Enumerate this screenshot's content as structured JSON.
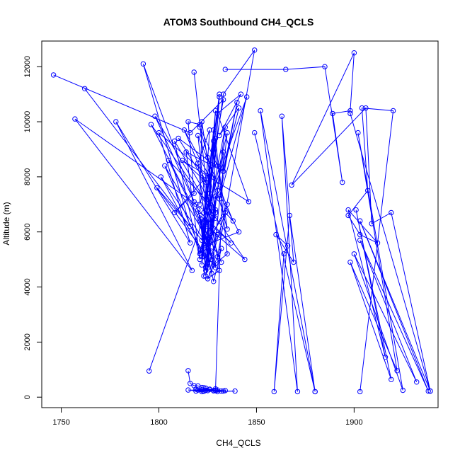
{
  "chart_data": {
    "type": "line",
    "title": "ATOM3 Southbound CH4_QCLS",
    "xlabel": "CH4_QCLS",
    "ylabel": "Altitude (m)",
    "xlim": [
      1740,
      1943
    ],
    "ylim": [
      -380,
      12930
    ],
    "x_ticks": [
      1750,
      1800,
      1850,
      1900
    ],
    "y_ticks": [
      0,
      2000,
      4000,
      6000,
      8000,
      10000,
      12000
    ],
    "grid": false,
    "legend": "none",
    "color": "#0000ff",
    "series": [
      {
        "marker": "open-circle",
        "x": [
          1746,
          1816,
          1833,
          1823,
          1831,
          1823,
          1828,
          1835,
          1821,
          1830,
          1828,
          1829,
          1826,
          1833,
          1849,
          1830,
          1827,
          1826,
          1825,
          1829,
          1822,
          1821,
          1828,
          1823,
          1841,
          1830,
          1822,
          1826,
          1820,
          1824,
          1831,
          1826,
          1825,
          1834,
          1826,
          1821,
          1834,
          1838,
          1820,
          1827,
          1835,
          1822,
          1829,
          1824,
          1821,
          1837,
          1820,
          1827,
          1835,
          1822,
          1824,
          1832,
          1796,
          1844,
          1823,
          1825,
          1822,
          1829,
          1835,
          1828,
          1821,
          1830,
          1824,
          1829,
          1823,
          1826,
          1831,
          1825,
          1832,
          1828,
          1822,
          1824,
          1833,
          1829,
          1820,
          1826,
          1833,
          1829,
          1830,
          1839,
          1823,
          1828,
          1832,
          1822,
          1819,
          1825,
          1828,
          1830,
          1822,
          1815,
          1834,
          1819,
          1826,
          1829,
          1824,
          1824,
          1823,
          1822,
          1820,
          1818,
          1816,
          1815
        ],
        "y": [
          11700,
          9600,
          10800,
          6700,
          11000,
          6400,
          9700,
          6100,
          9800,
          8400,
          9300,
          6700,
          7400,
          11000,
          12600,
          5100,
          6200,
          8000,
          4900,
          6700,
          10000,
          7000,
          9000,
          5500,
          6000,
          7500,
          5300,
          9700,
          8500,
          6200,
          10900,
          5800,
          4700,
          9800,
          6900,
          5200,
          6700,
          6400,
          9500,
          5000,
          7000,
          5100,
          10400,
          4600,
          6600,
          5600,
          6800,
          4500,
          9600,
          5700,
          6400,
          4900,
          9900,
          5000,
          6300,
          8700,
          4800,
          9400,
          5200,
          4800,
          6400,
          5900,
          4400,
          7300,
          4400,
          6900,
          4600,
          4300,
          5400,
          4200,
          6200,
          4700,
          8900,
          250,
          260,
          280,
          220,
          240,
          200,
          220,
          210,
          240,
          220,
          260,
          220,
          240,
          230,
          260,
          200,
          260,
          240,
          290,
          290,
          300,
          250,
          330,
          340,
          350,
          410,
          420,
          500,
          960
        ]
      },
      {
        "marker": "open-circle",
        "x": [
          1762,
          1816,
          1792,
          1818,
          1798,
          1829,
          1757,
          1817,
          1778,
          1816,
          1800,
          1826,
          1813,
          1824,
          1810,
          1833,
          1814,
          1821,
          1808,
          1829,
          1805,
          1826,
          1803,
          1823,
          1801,
          1827,
          1799,
          1828,
          1819,
          1829,
          1818,
          1821,
          1815,
          1818,
          1808,
          1823,
          1812,
          1846,
          1830,
          1842,
          1831,
          1841,
          1833,
          1840,
          1831,
          1845,
          1795
        ],
        "y": [
          11200,
          6200,
          12100,
          7100,
          10200,
          6500,
          10100,
          4600,
          10000,
          5600,
          9600,
          8000,
          9700,
          7800,
          9400,
          8200,
          8900,
          5000,
          9300,
          6800,
          8600,
          5600,
          8400,
          5100,
          8000,
          5300,
          7600,
          4800,
          7000,
          4700,
          11800,
          9900,
          10000,
          7400,
          6700,
          7900,
          8600,
          7100,
          10300,
          11000,
          9500,
          10500,
          8200,
          10700,
          7200,
          10900,
          950
        ]
      },
      {
        "marker": "open-circle",
        "x": [
          1849,
          1880,
          1852,
          1871,
          1863,
          1869,
          1860,
          1866,
          1864,
          1859,
          1867,
          1880
        ],
        "y": [
          9600,
          200,
          10400,
          200,
          10200,
          4900,
          5900,
          5500,
          5200,
          200,
          6600,
          200
        ]
      },
      {
        "marker": "open-circle",
        "x": [
          1834,
          1865,
          1885,
          1894,
          1889,
          1898,
          1900,
          1868,
          1906,
          1909,
          1919,
          1939,
          1898,
          1939,
          1903,
          1938,
          1903,
          1932,
          1900,
          1925,
          1902,
          1922,
          1898,
          1919,
          1901,
          1916,
          1897,
          1912,
          1903,
          1897,
          1907,
          1904,
          1920,
          1903
        ],
        "y": [
          11900,
          11900,
          12000,
          7800,
          10300,
          10400,
          12500,
          7700,
          10500,
          6300,
          6700,
          220,
          10300,
          220,
          6400,
          220,
          5700,
          550,
          5200,
          250,
          9600,
          960,
          4900,
          640,
          6800,
          1450,
          6800,
          5600,
          5900,
          6600,
          7500,
          10500,
          10400,
          200
        ]
      }
    ]
  }
}
